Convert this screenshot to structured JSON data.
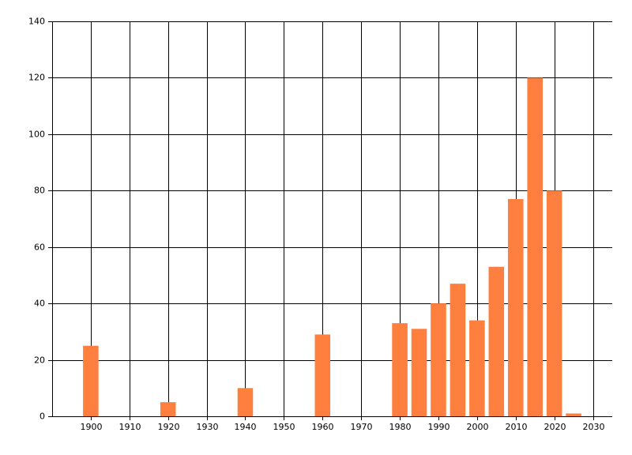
{
  "chart_data": {
    "type": "bar",
    "x": [
      1900,
      1920,
      1940,
      1960,
      1980,
      1985,
      1990,
      1995,
      2000,
      2005,
      2010,
      2015,
      2020,
      2025
    ],
    "values": [
      25,
      5,
      10,
      29,
      33,
      31,
      40,
      47,
      34,
      53,
      77,
      120,
      80,
      1
    ],
    "color": "#ff7f3f",
    "xlim": [
      1890,
      2035
    ],
    "xticks": [
      1900,
      1910,
      1920,
      1930,
      1940,
      1950,
      1960,
      1970,
      1980,
      1990,
      2000,
      2010,
      2020,
      2030
    ],
    "ylim": [
      0,
      140
    ],
    "yticks": [
      0,
      20,
      40,
      60,
      80,
      100,
      120,
      140
    ],
    "grid": true
  }
}
